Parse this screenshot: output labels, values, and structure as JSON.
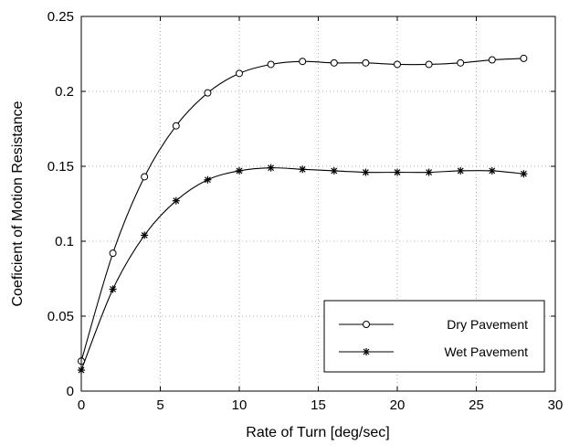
{
  "chart_data": {
    "type": "line",
    "title": "",
    "xlabel": "Rate of Turn [deg/sec]",
    "ylabel": "Coeficient  of Motion Resistance",
    "xlim": [
      0,
      30
    ],
    "ylim": [
      0,
      0.25
    ],
    "xticks": [
      "0",
      "5",
      "10",
      "15",
      "20",
      "25",
      "30"
    ],
    "yticks": [
      "0",
      "0.05",
      "0.1",
      "0.15",
      "0.2",
      "0.25"
    ],
    "grid": true,
    "legend_position": "lower-right",
    "x": [
      0,
      2,
      4,
      6,
      8,
      10,
      12,
      14,
      16,
      18,
      20,
      22,
      24,
      26,
      28
    ],
    "series": [
      {
        "name": "Dry Pavement",
        "marker": "circle",
        "color": "#000000",
        "values": [
          0.02,
          0.092,
          0.143,
          0.177,
          0.199,
          0.212,
          0.218,
          0.22,
          0.219,
          0.219,
          0.218,
          0.218,
          0.219,
          0.221,
          0.222
        ]
      },
      {
        "name": "Wet Pavement",
        "marker": "asterisk",
        "color": "#000000",
        "values": [
          0.014,
          0.068,
          0.104,
          0.127,
          0.141,
          0.147,
          0.149,
          0.148,
          0.147,
          0.146,
          0.146,
          0.146,
          0.147,
          0.147,
          0.145
        ]
      }
    ]
  }
}
